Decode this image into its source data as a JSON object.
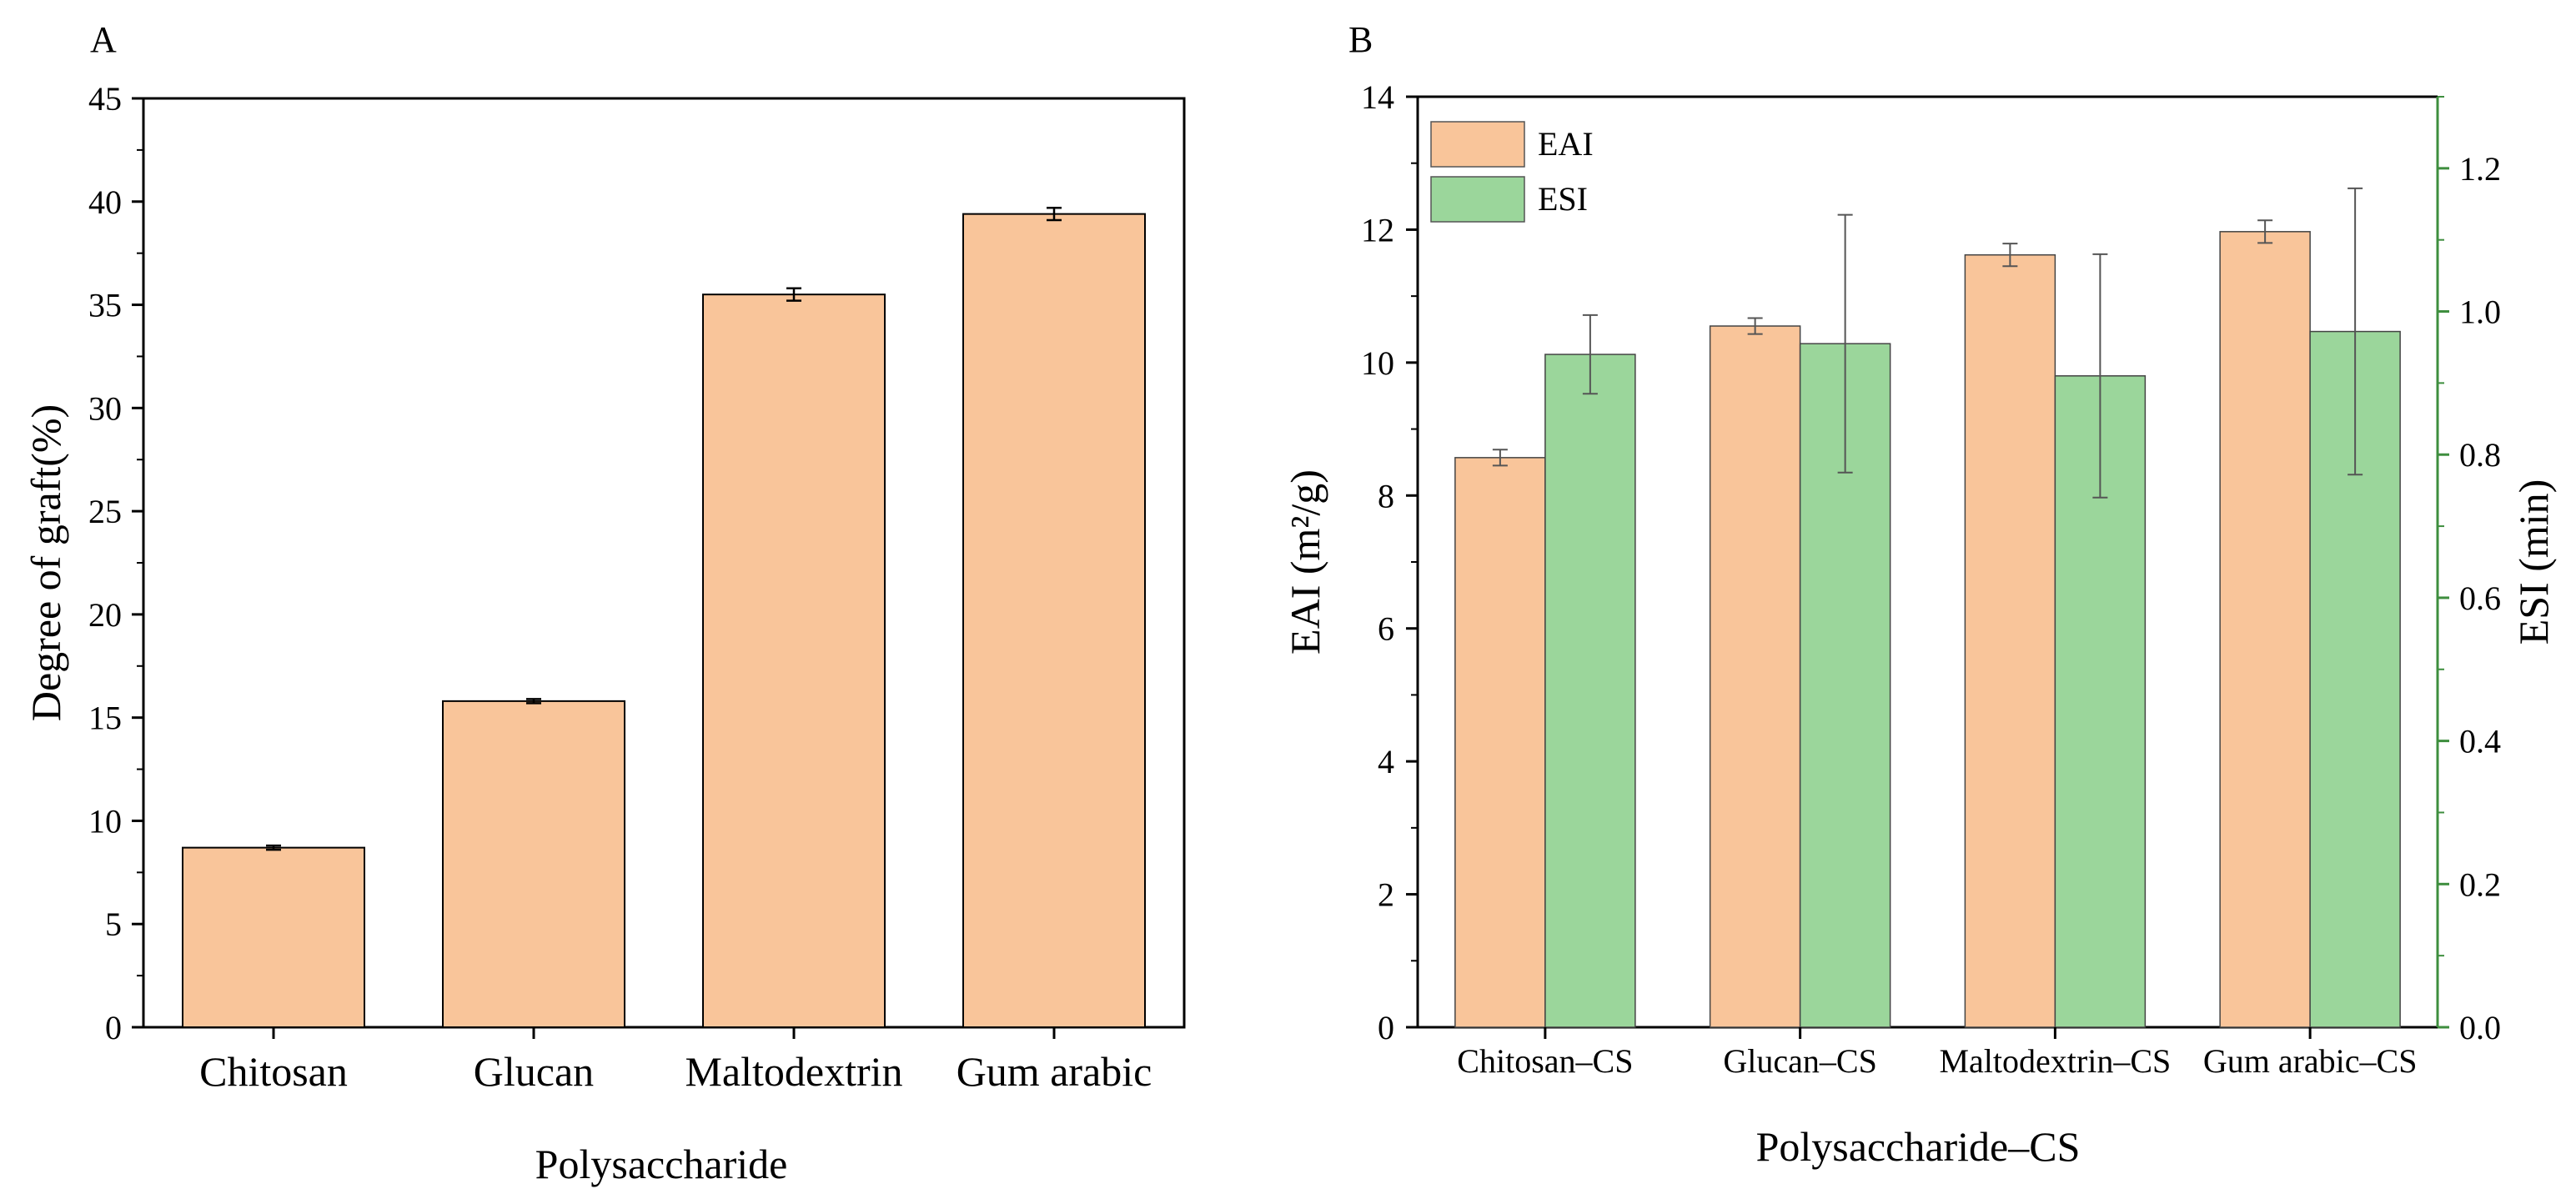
{
  "chart_data": [
    {
      "panel_label": "A",
      "type": "bar",
      "title": "",
      "xlabel": "Polysaccharide",
      "ylabel": "Degree of graft(%)",
      "ylim": [
        0,
        45
      ],
      "yticks": [
        "0",
        "5",
        "10",
        "15",
        "20",
        "25",
        "30",
        "35",
        "40",
        "45"
      ],
      "categories": [
        "Chitosan",
        "Glucan",
        "Maltodextrin",
        "Gum arabic"
      ],
      "series": [
        {
          "name": "Degree of graft",
          "values": [
            8.7,
            15.8,
            35.5,
            39.4
          ],
          "errors": [
            0.1,
            0.1,
            0.3,
            0.3
          ],
          "color": "#F9C59A"
        }
      ],
      "grid": false
    },
    {
      "panel_label": "B",
      "type": "bar",
      "title": "",
      "xlabel": "Polysaccharide–CS",
      "ylabel_left": "EAI (m²/g)",
      "ylabel_right": "ESI (min)",
      "ylim_left": [
        0,
        14
      ],
      "ylim_right": [
        0,
        1.3
      ],
      "yticks_left": [
        "0",
        "2",
        "4",
        "6",
        "8",
        "10",
        "12",
        "14"
      ],
      "yticks_right": [
        "0.0",
        "0.2",
        "0.4",
        "0.6",
        "0.8",
        "1.0",
        "1.2"
      ],
      "categories": [
        "Chitosan–CS",
        "Glucan–CS",
        "Maltodextrin–CS",
        "Gum arabic–CS"
      ],
      "series": [
        {
          "name": "EAI",
          "axis": "left",
          "values": [
            8.57,
            10.55,
            11.62,
            11.97
          ],
          "errors": [
            0.12,
            0.12,
            0.17,
            0.17
          ],
          "color": "#F9C59A"
        },
        {
          "name": "ESI",
          "axis": "right",
          "values": [
            0.94,
            0.955,
            0.91,
            0.972
          ],
          "errors": [
            0.055,
            0.18,
            0.17,
            0.2
          ],
          "color": "#9BD69B"
        }
      ],
      "legend": "top-left",
      "grid": false,
      "right_axis_color": "#3E8E3E"
    }
  ]
}
